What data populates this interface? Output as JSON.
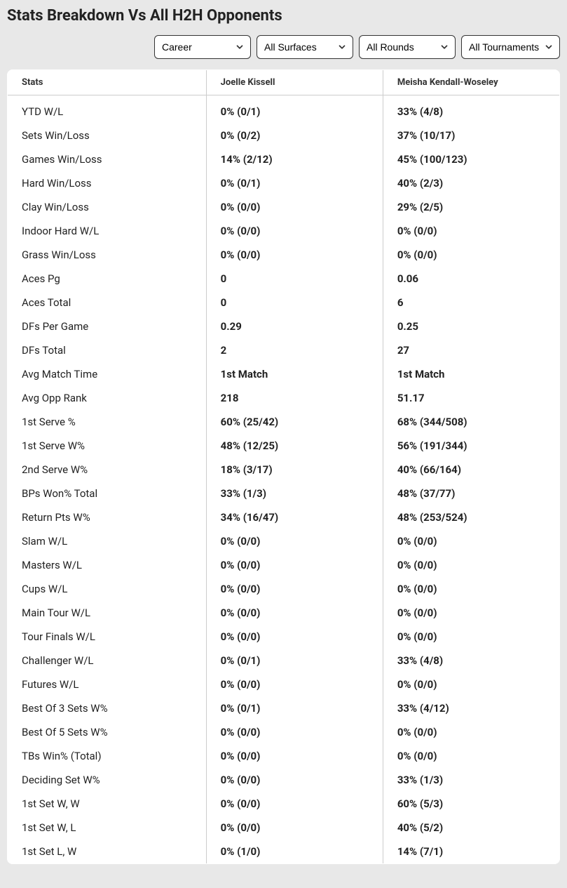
{
  "title": "Stats Breakdown Vs All H2H Opponents",
  "filters": {
    "career": "Career",
    "surfaces": "All Surfaces",
    "rounds": "All Rounds",
    "tournaments": "All Tournaments"
  },
  "columns": {
    "stats": "Stats",
    "player1": "Joelle Kissell",
    "player2": "Meisha Kendall-Woseley"
  },
  "rows": [
    {
      "label": "YTD W/L",
      "p1": "0% (0/1)",
      "p2": "33% (4/8)"
    },
    {
      "label": "Sets Win/Loss",
      "p1": "0% (0/2)",
      "p2": "37% (10/17)"
    },
    {
      "label": "Games Win/Loss",
      "p1": "14% (2/12)",
      "p2": "45% (100/123)"
    },
    {
      "label": "Hard Win/Loss",
      "p1": "0% (0/1)",
      "p2": "40% (2/3)"
    },
    {
      "label": "Clay Win/Loss",
      "p1": "0% (0/0)",
      "p2": "29% (2/5)"
    },
    {
      "label": "Indoor Hard W/L",
      "p1": "0% (0/0)",
      "p2": "0% (0/0)"
    },
    {
      "label": "Grass Win/Loss",
      "p1": "0% (0/0)",
      "p2": "0% (0/0)"
    },
    {
      "label": "Aces Pg",
      "p1": "0",
      "p2": "0.06"
    },
    {
      "label": "Aces Total",
      "p1": "0",
      "p2": "6"
    },
    {
      "label": "DFs Per Game",
      "p1": "0.29",
      "p2": "0.25"
    },
    {
      "label": "DFs Total",
      "p1": "2",
      "p2": "27"
    },
    {
      "label": "Avg Match Time",
      "p1": "1st Match",
      "p2": "1st Match"
    },
    {
      "label": "Avg Opp Rank",
      "p1": "218",
      "p2": "51.17"
    },
    {
      "label": "1st Serve %",
      "p1": "60% (25/42)",
      "p2": "68% (344/508)"
    },
    {
      "label": "1st Serve W%",
      "p1": "48% (12/25)",
      "p2": "56% (191/344)"
    },
    {
      "label": "2nd Serve W%",
      "p1": "18% (3/17)",
      "p2": "40% (66/164)"
    },
    {
      "label": "BPs Won% Total",
      "p1": "33% (1/3)",
      "p2": "48% (37/77)"
    },
    {
      "label": "Return Pts W%",
      "p1": "34% (16/47)",
      "p2": "48% (253/524)"
    },
    {
      "label": "Slam W/L",
      "p1": "0% (0/0)",
      "p2": "0% (0/0)"
    },
    {
      "label": "Masters W/L",
      "p1": "0% (0/0)",
      "p2": "0% (0/0)"
    },
    {
      "label": "Cups W/L",
      "p1": "0% (0/0)",
      "p2": "0% (0/0)"
    },
    {
      "label": "Main Tour W/L",
      "p1": "0% (0/0)",
      "p2": "0% (0/0)"
    },
    {
      "label": "Tour Finals W/L",
      "p1": "0% (0/0)",
      "p2": "0% (0/0)"
    },
    {
      "label": "Challenger W/L",
      "p1": "0% (0/1)",
      "p2": "33% (4/8)"
    },
    {
      "label": "Futures W/L",
      "p1": "0% (0/0)",
      "p2": "0% (0/0)"
    },
    {
      "label": "Best Of 3 Sets W%",
      "p1": "0% (0/1)",
      "p2": "33% (4/12)"
    },
    {
      "label": "Best Of 5 Sets W%",
      "p1": "0% (0/0)",
      "p2": "0% (0/0)"
    },
    {
      "label": "TBs Win% (Total)",
      "p1": "0% (0/0)",
      "p2": "0% (0/0)"
    },
    {
      "label": "Deciding Set W%",
      "p1": "0% (0/0)",
      "p2": "33% (1/3)"
    },
    {
      "label": "1st Set W, W",
      "p1": "0% (0/0)",
      "p2": "60% (5/3)"
    },
    {
      "label": "1st Set W, L",
      "p1": "0% (0/0)",
      "p2": "40% (5/2)"
    },
    {
      "label": "1st Set L, W",
      "p1": "0% (1/0)",
      "p2": "14% (7/1)"
    }
  ]
}
